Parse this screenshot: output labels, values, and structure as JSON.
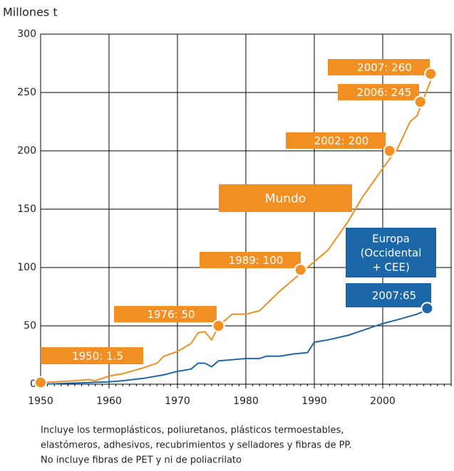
{
  "chart_data": {
    "type": "line",
    "y_label": "Millones  t",
    "xlim": [
      1950,
      2010
    ],
    "xticks": [
      1950,
      1960,
      1970,
      1980,
      1990,
      2000
    ],
    "ylim": [
      0,
      300
    ],
    "yticks": [
      0,
      50,
      100,
      150,
      200,
      250,
      300
    ],
    "grid": true,
    "series": [
      {
        "name": "Mundo",
        "color": "#f18f22",
        "x": [
          1950,
          1952,
          1955,
          1957,
          1958,
          1960,
          1962,
          1965,
          1967,
          1968,
          1970,
          1972,
          1973,
          1974,
          1975,
          1976,
          1978,
          1980,
          1982,
          1985,
          1987,
          1989,
          1990,
          1992,
          1995,
          1997,
          2000,
          2001,
          2002,
          2004,
          2005,
          2006,
          2007
        ],
        "values": [
          1.5,
          2,
          3,
          4,
          3,
          7,
          9,
          14,
          18,
          24,
          28,
          35,
          44,
          45,
          38,
          50,
          60,
          60,
          63,
          80,
          90,
          100,
          105,
          115,
          140,
          160,
          185,
          193,
          200,
          225,
          230,
          245,
          260
        ]
      },
      {
        "name": "Europa (Occidental + CEE)",
        "color": "#1c67a8",
        "x": [
          1950,
          1955,
          1960,
          1962,
          1965,
          1968,
          1970,
          1972,
          1973,
          1974,
          1975,
          1976,
          1978,
          1980,
          1982,
          1983,
          1985,
          1987,
          1989,
          1990,
          1992,
          1995,
          1997,
          2000,
          2002,
          2005,
          2007
        ],
        "values": [
          0,
          1,
          2,
          3,
          5,
          8,
          11,
          13,
          18,
          18,
          15,
          20,
          21,
          22,
          22,
          24,
          24,
          26,
          27,
          36,
          38,
          42,
          46,
          52,
          55,
          60,
          65
        ]
      }
    ],
    "annotations": [
      {
        "label": "1950: 1.5",
        "x": 1950,
        "y": 1.5,
        "color": "#f18f22"
      },
      {
        "label": "1976: 50",
        "x": 1976,
        "y": 50,
        "color": "#f18f22"
      },
      {
        "label": "1989: 100",
        "x": 1988,
        "y": 98,
        "color": "#f18f22"
      },
      {
        "label": "2002: 200",
        "x": 2001,
        "y": 200,
        "color": "#f18f22"
      },
      {
        "label": "2006: 245",
        "x": 2005.5,
        "y": 242,
        "color": "#f18f22"
      },
      {
        "label": "2007: 260",
        "x": 2007,
        "y": 266,
        "color": "#f18f22"
      },
      {
        "label": "2007:65",
        "x": 2006.5,
        "y": 65,
        "color": "#1c67a8"
      }
    ],
    "series_labels": [
      {
        "lines": [
          "Mundo"
        ],
        "color": "#f18f22"
      },
      {
        "lines": [
          "Europa",
          "(Occidental",
          "+ CEE)"
        ],
        "color": "#1c67a8"
      }
    ],
    "footnote": [
      "Incluye los termoplásticos, poliuretanos, plásticos termoestables,",
      "elastómeros, adhesivos, recubrimientos y selladores y fibras de PP.",
      "No incluye fibras de PET y  ni de poliacrilato"
    ]
  }
}
